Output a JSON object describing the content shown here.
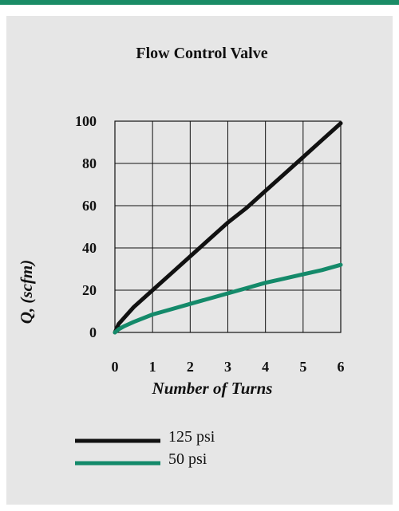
{
  "colors": {
    "accent_bar": "#1a8c66",
    "panel_background": "#e6e6e6",
    "series_125": "#111111",
    "series_50": "#148a6a"
  },
  "chart_data": {
    "type": "line",
    "title": "Flow Control Valve",
    "xlabel": "Number of Turns",
    "ylabel": "Q, (scfm)",
    "xlim": [
      0,
      6
    ],
    "ylim": [
      0,
      100
    ],
    "x_ticks": [
      "0",
      "1",
      "2",
      "3",
      "4",
      "5",
      "6"
    ],
    "y_ticks": [
      "0",
      "20",
      "40",
      "60",
      "80",
      "100"
    ],
    "grid": true,
    "legend_position": "bottom-left",
    "series": [
      {
        "name": "125 psi",
        "color": "#111111",
        "x": [
          0,
          0.05,
          0.1,
          0.25,
          0.5,
          1,
          1.5,
          2,
          2.5,
          3,
          3.5,
          4,
          4.5,
          5,
          5.5,
          6
        ],
        "y": [
          0,
          2,
          4,
          7,
          12,
          20,
          28,
          36,
          44,
          52,
          59,
          67,
          75,
          83,
          91,
          99
        ]
      },
      {
        "name": "50 psi",
        "color": "#148a6a",
        "x": [
          0,
          0.1,
          0.25,
          0.5,
          1,
          1.5,
          2,
          2.5,
          3,
          3.5,
          4,
          4.5,
          5,
          5.5,
          6
        ],
        "y": [
          0,
          1.5,
          3,
          5,
          8.5,
          11,
          13.5,
          16,
          18.5,
          21,
          23.5,
          25.5,
          27.5,
          29.5,
          32
        ]
      }
    ]
  }
}
